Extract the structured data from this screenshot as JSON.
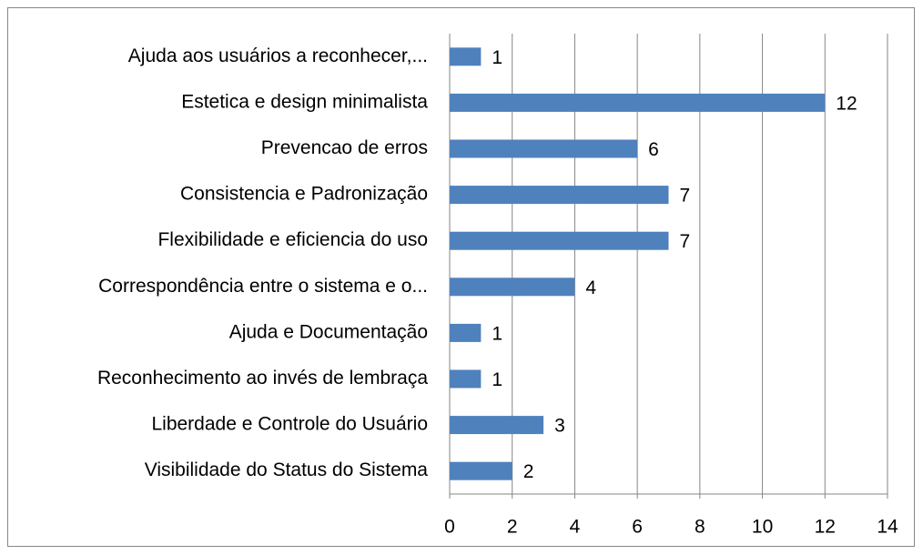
{
  "chart_data": {
    "type": "bar",
    "orientation": "horizontal",
    "categories": [
      "Ajuda aos usuários a reconhecer,...",
      "Estetica e design minimalista",
      "Prevencao de erros",
      "Consistencia e Padronização",
      "Flexibilidade e eficiencia do uso",
      "Correspondência entre o sistema e o...",
      "Ajuda e Documentação",
      "Reconhecimento ao invés de lembraça",
      "Liberdade e Controle do Usuário",
      "Visibilidade do Status do Sistema"
    ],
    "values": [
      1,
      12,
      6,
      7,
      7,
      4,
      1,
      1,
      3,
      2
    ],
    "color": "#4f81bd",
    "xlim": [
      0,
      14
    ],
    "xticks": [
      0,
      2,
      4,
      6,
      8,
      10,
      12,
      14
    ],
    "grid": true
  }
}
